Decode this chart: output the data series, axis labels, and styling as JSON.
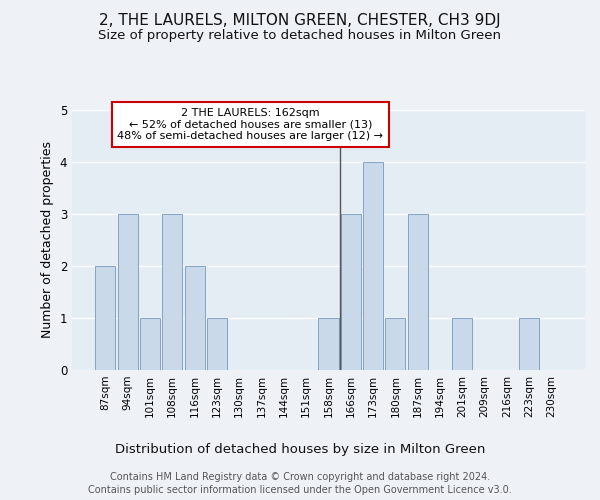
{
  "title": "2, THE LAURELS, MILTON GREEN, CHESTER, CH3 9DJ",
  "subtitle": "Size of property relative to detached houses in Milton Green",
  "xlabel": "Distribution of detached houses by size in Milton Green",
  "ylabel": "Number of detached properties",
  "categories": [
    "87sqm",
    "94sqm",
    "101sqm",
    "108sqm",
    "116sqm",
    "123sqm",
    "130sqm",
    "137sqm",
    "144sqm",
    "151sqm",
    "158sqm",
    "166sqm",
    "173sqm",
    "180sqm",
    "187sqm",
    "194sqm",
    "201sqm",
    "209sqm",
    "216sqm",
    "223sqm",
    "230sqm"
  ],
  "values": [
    2,
    3,
    1,
    3,
    2,
    1,
    0,
    0,
    0,
    0,
    1,
    3,
    4,
    1,
    3,
    0,
    1,
    0,
    0,
    1,
    0
  ],
  "bar_color": "#c9d9e9",
  "bar_edge_color": "#7799bb",
  "background_color": "#eef2f7",
  "plot_bg_color": "#e4ecf4",
  "grid_color": "#ffffff",
  "annotation_title": "2 THE LAURELS: 162sqm",
  "annotation_line1": "← 52% of detached houses are smaller (13)",
  "annotation_line2": "48% of semi-detached houses are larger (12) →",
  "annotation_box_color": "#ffffff",
  "annotation_border_color": "#cc0000",
  "vline_color": "#555555",
  "ylim": [
    0,
    5
  ],
  "yticks": [
    0,
    1,
    2,
    3,
    4,
    5
  ],
  "footer_line1": "Contains HM Land Registry data © Crown copyright and database right 2024.",
  "footer_line2": "Contains public sector information licensed under the Open Government Licence v3.0.",
  "title_fontsize": 11,
  "subtitle_fontsize": 9.5,
  "xlabel_fontsize": 9.5,
  "ylabel_fontsize": 9,
  "tick_fontsize": 7.5,
  "annot_fontsize": 8,
  "footer_fontsize": 7
}
